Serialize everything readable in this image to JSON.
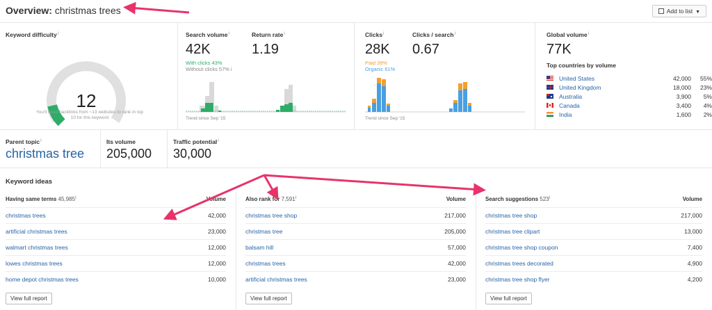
{
  "header": {
    "title_prefix": "Overview:",
    "keyword": "christmas trees",
    "add_to_list": "Add to list"
  },
  "keyword_difficulty": {
    "label": "Keyword difficulty",
    "value": "12",
    "value_fraction": 0.12,
    "note": "You'll need backlinks from ~13 websites to rank in top 10 for this keyword"
  },
  "search_volume": {
    "label": "Search volume",
    "value": "42K",
    "with_clicks": "With clicks 43%",
    "without_clicks": "Without clicks 57%",
    "trend_note": "Trend since Sep '15"
  },
  "return_rate": {
    "label": "Return rate",
    "value": "1.19"
  },
  "clicks": {
    "label": "Clicks",
    "value": "28K",
    "paid": "Paid 39%",
    "organic": "Organic 61%",
    "trend_note": "Trend since Sep '15"
  },
  "clicks_per_search": {
    "label": "Clicks / search",
    "value": "0.67"
  },
  "global_volume": {
    "label": "Global volume",
    "value": "77K",
    "countries_label": "Top countries by volume",
    "countries": [
      {
        "name": "United States",
        "volume": "42,000",
        "pct": "55%",
        "flag": "us-flag"
      },
      {
        "name": "United Kingdom",
        "volume": "18,000",
        "pct": "23%",
        "flag": "uk-flag"
      },
      {
        "name": "Australia",
        "volume": "3,900",
        "pct": "5%",
        "flag": "au-flag"
      },
      {
        "name": "Canada",
        "volume": "3,400",
        "pct": "4%",
        "flag": "ca-flag"
      },
      {
        "name": "India",
        "volume": "1,600",
        "pct": "2%",
        "flag": "in-flag"
      }
    ]
  },
  "parent_topic": {
    "label": "Parent topic",
    "value": "christmas tree",
    "its_volume_label": "Its volume",
    "its_volume": "205,000",
    "traffic_label": "Traffic potential",
    "traffic": "30,000"
  },
  "keyword_ideas": {
    "title": "Keyword ideas",
    "volume_header": "Volume",
    "view_full_report": "View full report",
    "columns": [
      {
        "heading": "Having same terms",
        "count": "45,985",
        "rows": [
          {
            "kw": "christmas trees",
            "vol": "42,000"
          },
          {
            "kw": "artificial christmas trees",
            "vol": "23,000"
          },
          {
            "kw": "walmart christmas trees",
            "vol": "12,000"
          },
          {
            "kw": "lowes christmas trees",
            "vol": "12,000"
          },
          {
            "kw": "home depot christmas trees",
            "vol": "10,000"
          }
        ]
      },
      {
        "heading": "Also rank for",
        "count": "7,591",
        "rows": [
          {
            "kw": "christmas tree shop",
            "vol": "217,000"
          },
          {
            "kw": "christmas tree",
            "vol": "205,000"
          },
          {
            "kw": "balsam hill",
            "vol": "57,000"
          },
          {
            "kw": "christmas trees",
            "vol": "42,000"
          },
          {
            "kw": "artificial christmas trees",
            "vol": "23,000"
          }
        ]
      },
      {
        "heading": "Search suggestions",
        "count": "523",
        "rows": [
          {
            "kw": "christmas tree shop",
            "vol": "217,000"
          },
          {
            "kw": "christmas tree clipart",
            "vol": "13,000"
          },
          {
            "kw": "christmas tree shop coupon",
            "vol": "7,400"
          },
          {
            "kw": "christmas trees decorated",
            "vol": "4,900"
          },
          {
            "kw": "christmas tree shop flyer",
            "vol": "4,200"
          }
        ]
      }
    ]
  },
  "colors": {
    "link": "#2563a6",
    "green": "#2eac68",
    "orange": "#f0a031",
    "blue": "#4a9fe0",
    "arrow": "#e8336a"
  }
}
